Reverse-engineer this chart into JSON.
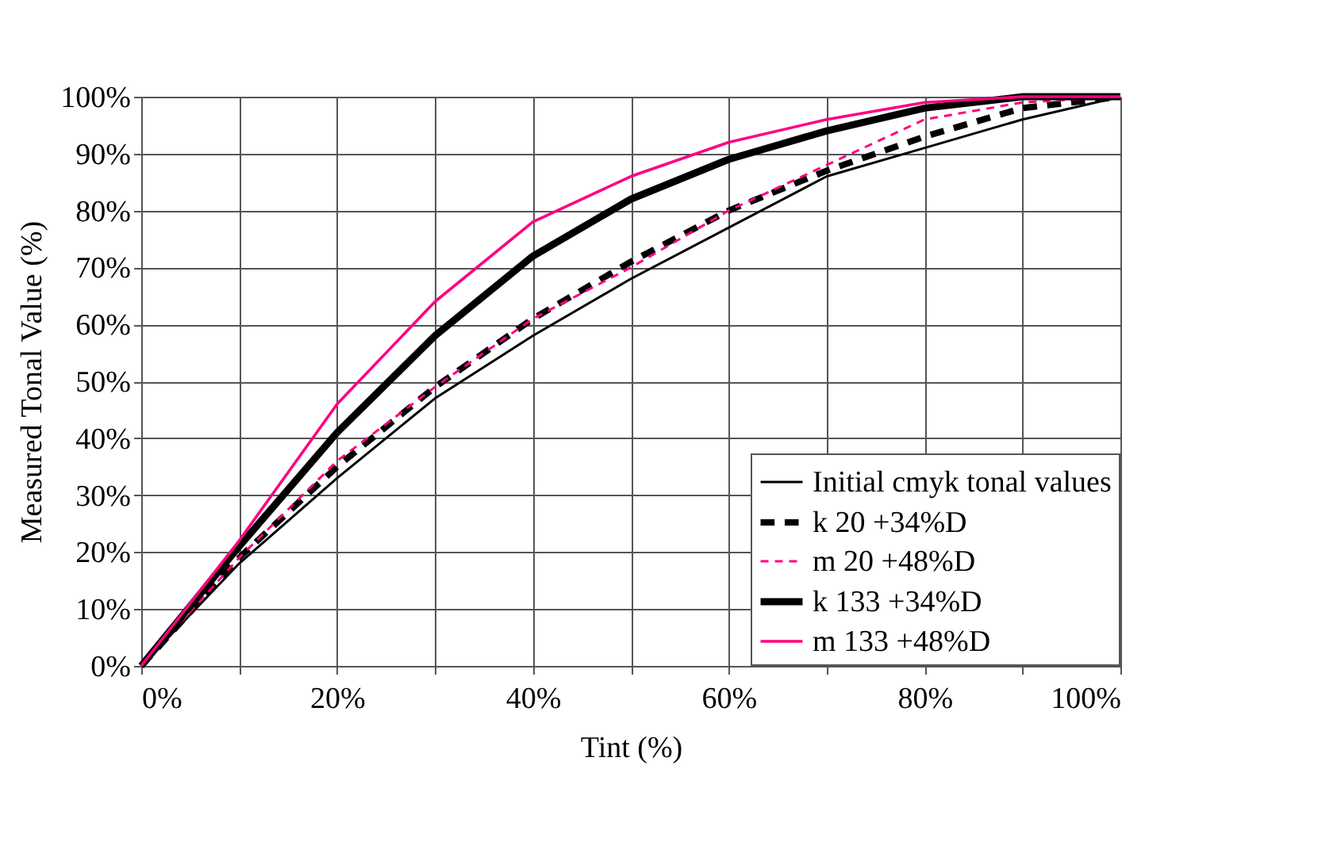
{
  "chart_data": {
    "type": "line",
    "xlabel": "Tint (%)",
    "ylabel": "Measured Tonal Value (%)",
    "x": [
      0,
      10,
      20,
      30,
      40,
      50,
      60,
      70,
      80,
      90,
      100
    ],
    "series": [
      {
        "name": "Initial cmyk tonal values",
        "color": "#000000",
        "line_style": "solid",
        "values": [
          0,
          18,
          33,
          47,
          58,
          68,
          77,
          86,
          91,
          96,
          100
        ]
      },
      {
        "name": "k 20 +34%D",
        "color": "#000000",
        "line_style": "dashed",
        "values": [
          0,
          19,
          35,
          49,
          61,
          71,
          80,
          87,
          93,
          98,
          100
        ]
      },
      {
        "name": "m 20 +48%D",
        "color": "#ff0080",
        "line_style": "dashed",
        "values": [
          0,
          19,
          36,
          49,
          61,
          70,
          80,
          88,
          96,
          99,
          100
        ]
      },
      {
        "name": "k 133 +34%D",
        "color": "#000000",
        "line_style": "solid",
        "values": [
          0,
          21,
          41,
          58,
          72,
          82,
          89,
          94,
          98,
          100,
          100
        ]
      },
      {
        "name": "m 133 +48%D",
        "color": "#ff0080",
        "line_style": "solid",
        "values": [
          0,
          22,
          46,
          64,
          78,
          86,
          92,
          96,
          99,
          100,
          100
        ]
      }
    ],
    "xlim": [
      0,
      100
    ],
    "ylim": [
      0,
      100
    ],
    "xticks": [
      {
        "value": 0,
        "label": "0%"
      },
      {
        "value": 10,
        "label": null
      },
      {
        "value": 20,
        "label": "20%"
      },
      {
        "value": 30,
        "label": null
      },
      {
        "value": 40,
        "label": "40%"
      },
      {
        "value": 50,
        "label": null
      },
      {
        "value": 60,
        "label": "60%"
      },
      {
        "value": 70,
        "label": null
      },
      {
        "value": 80,
        "label": "80%"
      },
      {
        "value": 90,
        "label": null
      },
      {
        "value": 100,
        "label": "100%"
      }
    ],
    "yticks": [
      {
        "value": 0,
        "label": "0%"
      },
      {
        "value": 10,
        "label": "10%"
      },
      {
        "value": 20,
        "label": "20%"
      },
      {
        "value": 30,
        "label": "30%"
      },
      {
        "value": 40,
        "label": "40%"
      },
      {
        "value": 50,
        "label": "50%"
      },
      {
        "value": 60,
        "label": "60%"
      },
      {
        "value": 70,
        "label": "70%"
      },
      {
        "value": 80,
        "label": "80%"
      },
      {
        "value": 90,
        "label": "90%"
      },
      {
        "value": 100,
        "label": "100%"
      }
    ],
    "grid": true,
    "legend": "bottom right",
    "marker": "none"
  }
}
